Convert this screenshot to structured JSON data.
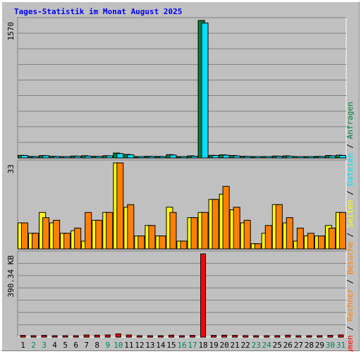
{
  "title": "Tages-Statistik im Monat August 2025",
  "colors": {
    "title": "#0000ff",
    "background": "#c0c0c0",
    "gridline": "#808080",
    "hits": "#008040",
    "files": "#00e0ff",
    "pages": "#ffff00",
    "visits": "#ff8000",
    "sites": "#ff8000",
    "kbytes": "#ff0000",
    "weekend_day": "#00805c",
    "weekday": "#000000"
  },
  "chart_data": [
    {
      "type": "bar",
      "panel": "top",
      "axis_label": "1570",
      "ylim": [
        0,
        1570
      ],
      "categories": [
        "1",
        "2",
        "3",
        "4",
        "5",
        "6",
        "7",
        "8",
        "9",
        "10",
        "11",
        "12",
        "13",
        "14",
        "15",
        "16",
        "17",
        "18",
        "19",
        "20",
        "21",
        "22",
        "23",
        "24",
        "25",
        "26",
        "27",
        "28",
        "29",
        "30",
        "31"
      ],
      "series": [
        {
          "key": "hits",
          "values": [
            30,
            18,
            28,
            20,
            14,
            22,
            26,
            20,
            26,
            56,
            40,
            16,
            20,
            18,
            38,
            14,
            24,
            1570,
            30,
            36,
            28,
            20,
            16,
            14,
            22,
            24,
            16,
            14,
            18,
            28,
            32
          ]
        },
        {
          "key": "files",
          "values": [
            28,
            16,
            26,
            18,
            12,
            20,
            22,
            18,
            24,
            50,
            36,
            14,
            18,
            16,
            34,
            12,
            20,
            1540,
            28,
            32,
            24,
            18,
            14,
            12,
            20,
            20,
            14,
            12,
            16,
            24,
            28
          ]
        }
      ]
    },
    {
      "type": "bar",
      "panel": "middle",
      "axis_label": "33",
      "ylim": [
        0,
        33
      ],
      "categories": [
        "1",
        "2",
        "3",
        "4",
        "5",
        "6",
        "7",
        "8",
        "9",
        "10",
        "11",
        "12",
        "13",
        "14",
        "15",
        "16",
        "17",
        "18",
        "19",
        "20",
        "21",
        "22",
        "23",
        "24",
        "25",
        "26",
        "27",
        "28",
        "29",
        "30",
        "31"
      ],
      "series": [
        {
          "key": "pages",
          "values": [
            10,
            6,
            14,
            10,
            6,
            7,
            3,
            11,
            14,
            33,
            16,
            5,
            9,
            5,
            16,
            3,
            12,
            14,
            19,
            21,
            15,
            10,
            2,
            6,
            17,
            10,
            3,
            5,
            5,
            9,
            14
          ]
        },
        {
          "key": "visits",
          "values": [
            10,
            6,
            12,
            11,
            6,
            8,
            14,
            11,
            14,
            33,
            17,
            5,
            9,
            5,
            14,
            3,
            12,
            14,
            19,
            24,
            16,
            11,
            2,
            9,
            17,
            12,
            8,
            6,
            5,
            8,
            14
          ]
        }
      ]
    },
    {
      "type": "bar",
      "panel": "bottom",
      "axis_label": "390.34 KB",
      "ylim": [
        0,
        390.34
      ],
      "categories": [
        "1",
        "2",
        "3",
        "4",
        "5",
        "6",
        "7",
        "8",
        "9",
        "10",
        "11",
        "12",
        "13",
        "14",
        "15",
        "16",
        "17",
        "18",
        "19",
        "20",
        "21",
        "22",
        "23",
        "24",
        "25",
        "26",
        "27",
        "28",
        "29",
        "30",
        "31"
      ],
      "series": [
        {
          "key": "kbytes",
          "values": [
            8,
            6,
            8,
            6,
            5,
            6,
            10,
            9,
            10,
            15,
            10,
            5,
            6,
            5,
            9,
            5,
            8,
            390.34,
            8,
            9,
            8,
            7,
            6,
            6,
            7,
            9,
            6,
            5,
            6,
            8,
            10
          ]
        }
      ]
    }
  ],
  "x_labels": [
    {
      "text": "1",
      "weekend": false
    },
    {
      "text": "2",
      "weekend": true
    },
    {
      "text": "3",
      "weekend": true
    },
    {
      "text": "4",
      "weekend": false
    },
    {
      "text": "5",
      "weekend": false
    },
    {
      "text": "6",
      "weekend": false
    },
    {
      "text": "7",
      "weekend": false
    },
    {
      "text": "8",
      "weekend": false
    },
    {
      "text": "9",
      "weekend": true
    },
    {
      "text": "10",
      "weekend": true
    },
    {
      "text": "11",
      "weekend": false
    },
    {
      "text": "12",
      "weekend": false
    },
    {
      "text": "13",
      "weekend": false
    },
    {
      "text": "14",
      "weekend": false
    },
    {
      "text": "15",
      "weekend": false
    },
    {
      "text": "16",
      "weekend": true
    },
    {
      "text": "17",
      "weekend": true
    },
    {
      "text": "18",
      "weekend": false
    },
    {
      "text": "19",
      "weekend": false
    },
    {
      "text": "20",
      "weekend": false
    },
    {
      "text": "21",
      "weekend": false
    },
    {
      "text": "22",
      "weekend": false
    },
    {
      "text": "23",
      "weekend": true
    },
    {
      "text": "24",
      "weekend": true
    },
    {
      "text": "25",
      "weekend": false
    },
    {
      "text": "26",
      "weekend": false
    },
    {
      "text": "27",
      "weekend": false
    },
    {
      "text": "28",
      "weekend": false
    },
    {
      "text": "29",
      "weekend": false
    },
    {
      "text": "30",
      "weekend": true
    },
    {
      "text": "31",
      "weekend": true
    }
  ],
  "legend": [
    {
      "text": "Volumen",
      "color_key": "kbytes"
    },
    {
      "text": " / ",
      "color_key": "weekday"
    },
    {
      "text": "Rechner",
      "color_key": "sites"
    },
    {
      "text": " / ",
      "color_key": "weekday"
    },
    {
      "text": "Besuche",
      "color_key": "visits"
    },
    {
      "text": " / ",
      "color_key": "weekday"
    },
    {
      "text": "Seiten",
      "color_key": "pages"
    },
    {
      "text": " / ",
      "color_key": "weekday"
    },
    {
      "text": "Dateien",
      "color_key": "files"
    },
    {
      "text": " / ",
      "color_key": "weekday"
    },
    {
      "text": "Anfragen",
      "color_key": "hits"
    }
  ]
}
